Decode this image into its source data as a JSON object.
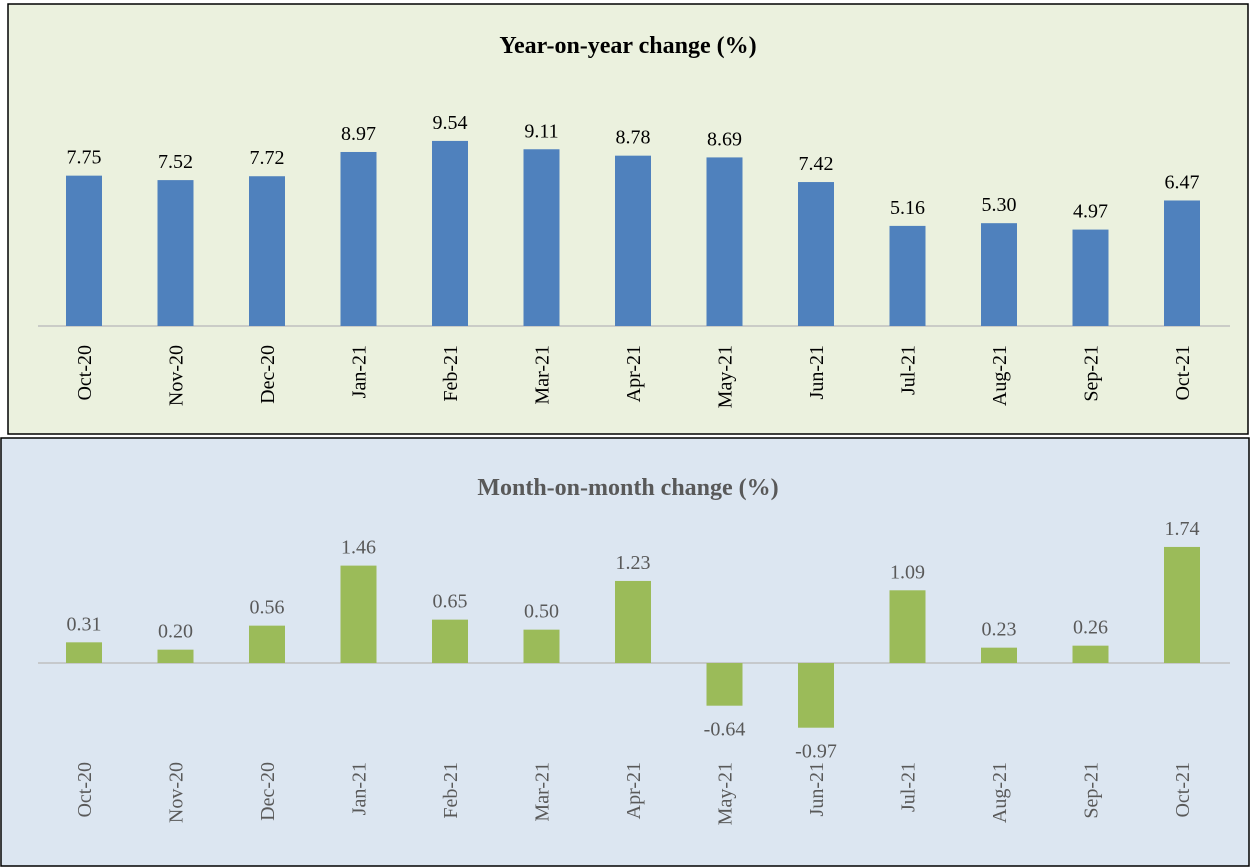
{
  "chart_data": [
    {
      "type": "bar",
      "title": "Year-on-year change (%)",
      "categories": [
        "Oct-20",
        "Nov-20",
        "Dec-20",
        "Jan-21",
        "Feb-21",
        "Mar-21",
        "Apr-21",
        "May-21",
        "Jun-21",
        "Jul-21",
        "Aug-21",
        "Sep-21",
        "Oct-21"
      ],
      "values": [
        7.75,
        7.52,
        7.72,
        8.97,
        9.54,
        9.11,
        8.78,
        8.69,
        7.42,
        5.16,
        5.3,
        4.97,
        6.47
      ],
      "value_labels": [
        "7.75",
        "7.52",
        "7.72",
        "8.97",
        "9.54",
        "9.11",
        "8.78",
        "8.69",
        "7.42",
        "5.16",
        "5.30",
        "4.97",
        "6.47"
      ],
      "color": "#4f81bd"
    },
    {
      "type": "bar",
      "title": "Month-on-month change (%)",
      "categories": [
        "Oct-20",
        "Nov-20",
        "Dec-20",
        "Jan-21",
        "Feb-21",
        "Mar-21",
        "Apr-21",
        "May-21",
        "Jun-21",
        "Jul-21",
        "Aug-21",
        "Sep-21",
        "Oct-21"
      ],
      "values": [
        0.31,
        0.2,
        0.56,
        1.46,
        0.65,
        0.5,
        1.23,
        -0.64,
        -0.97,
        1.09,
        0.23,
        0.26,
        1.74
      ],
      "value_labels": [
        "0.31",
        "0.20",
        "0.56",
        "1.46",
        "0.65",
        "0.50",
        "1.23",
        "-0.64",
        "-0.97",
        "1.09",
        "0.23",
        "0.26",
        "1.74"
      ],
      "color": "#9bbb59"
    }
  ]
}
